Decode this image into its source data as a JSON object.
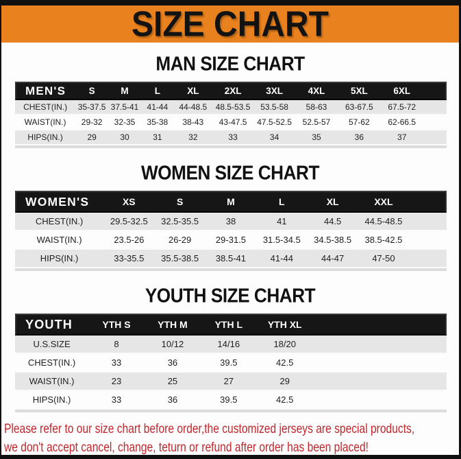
{
  "banner": {
    "title": "SIZE CHART",
    "bg_color": "#E8811E",
    "text_color": "#131313"
  },
  "sections": [
    {
      "heading": "MAN SIZE CHART",
      "table": {
        "name_label": "MEN'S",
        "size_columns": [
          "S",
          "M",
          "L",
          "XL",
          "2XL",
          "3XL",
          "4XL",
          "5XL",
          "6XL"
        ],
        "rows": [
          {
            "label": "CHEST(IN.)",
            "values": [
              "35-37.5",
              "37.5-41",
              "41-44",
              "44-48.5",
              "48.5-53.5",
              "53.5-58",
              "58-63",
              "63-67.5",
              "67.5-72"
            ]
          },
          {
            "label": "WAIST(IN.)",
            "values": [
              "29-32",
              "32-35",
              "35-38",
              "38-43",
              "43-47.5",
              "47.5-52.5",
              "52.5-57",
              "57-62",
              "62-66.5"
            ]
          },
          {
            "label": "HIPS(IN.)",
            "values": [
              "29",
              "30",
              "31",
              "32",
              "33",
              "34",
              "35",
              "36",
              "37"
            ]
          }
        ]
      }
    },
    {
      "heading": "WOMEN SIZE CHART",
      "table": {
        "name_label": "WOMEN'S",
        "size_columns": [
          "XS",
          "S",
          "M",
          "L",
          "XL",
          "XXL"
        ],
        "rows": [
          {
            "label": "CHEST(IN.)",
            "values": [
              "29.5-32.5",
              "32.5-35.5",
              "38",
              "41",
              "44.5",
              "44.5-48.5"
            ]
          },
          {
            "label": "WAIST(IN.)",
            "values": [
              "23.5-26",
              "26-29",
              "29-31.5",
              "31.5-34.5",
              "34.5-38.5",
              "38.5-42.5"
            ]
          },
          {
            "label": "HIPS(IN.)",
            "values": [
              "33-35.5",
              "35.5-38.5",
              "38.5-41",
              "41-44",
              "44-47",
              "47-50"
            ]
          }
        ]
      }
    },
    {
      "heading": "YOUTH SIZE CHART",
      "table": {
        "name_label": "YOUTH",
        "size_columns": [
          "YTH S",
          "YTH M",
          "YTH L",
          "YTH XL"
        ],
        "rows": [
          {
            "label": "U.S.SIZE",
            "values": [
              "8",
              "10/12",
              "14/16",
              "18/20"
            ]
          },
          {
            "label": "CHEST(IN.)",
            "values": [
              "33",
              "36",
              "39.5",
              "42.5"
            ]
          },
          {
            "label": "WAIST(IN.)",
            "values": [
              "23",
              "25",
              "27",
              "29"
            ]
          },
          {
            "label": "HIPS(IN.)",
            "values": [
              "33",
              "36",
              "39.5",
              "42.5"
            ]
          }
        ]
      }
    }
  ],
  "footer": {
    "text_color": "#C1272D",
    "lines": [
      "Please refer to our size chart before order,the customized jerseys are special products,",
      "we don't accept cancel, change, teturn or refund after order has been placed!"
    ]
  }
}
